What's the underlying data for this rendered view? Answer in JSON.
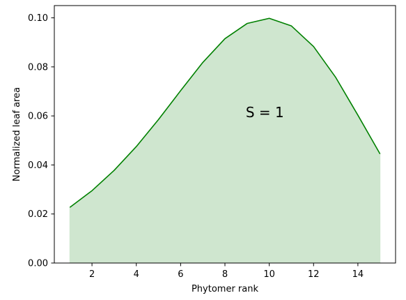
{
  "chart_data": {
    "type": "area",
    "xlabel": "Phytomer rank",
    "ylabel": "Normalized leaf area",
    "xlim": [
      0.3,
      15.7
    ],
    "ylim": [
      0.0,
      0.105
    ],
    "xticks": [
      2,
      4,
      6,
      8,
      10,
      12,
      14
    ],
    "xtick_labels": [
      "2",
      "4",
      "6",
      "8",
      "10",
      "12",
      "14"
    ],
    "yticks": [
      0.0,
      0.02,
      0.04,
      0.06,
      0.08,
      0.1
    ],
    "ytick_labels": [
      "0.00",
      "0.02",
      "0.04",
      "0.06",
      "0.08",
      "0.10"
    ],
    "grid": false,
    "series": [
      {
        "x": [
          1,
          2,
          3,
          4,
          5,
          6,
          7,
          8,
          9,
          10,
          11,
          12,
          13,
          14,
          15
        ],
        "values": [
          0.0227,
          0.0295,
          0.0378,
          0.0475,
          0.0585,
          0.0703,
          0.0818,
          0.0915,
          0.0977,
          0.0998,
          0.0967,
          0.0883,
          0.0757,
          0.0603,
          0.0445
        ],
        "line_color": "#008000",
        "fill_color": "#cfe6cf"
      }
    ],
    "annotations": [
      {
        "text": "S = 1",
        "x": 9.8,
        "y": 0.0615
      }
    ]
  }
}
